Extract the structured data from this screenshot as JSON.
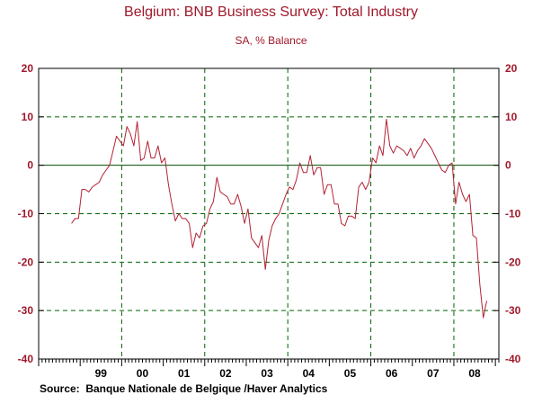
{
  "title": "Belgium: BNB Business Survey: Total Industry",
  "subtitle": "SA, % Balance",
  "source": "Source:  Banque Nationale de Belgique /Haver Analytics",
  "colors": {
    "title": "#a0182a",
    "line": "#b22234",
    "ytick": "#a0182a",
    "grid": "#006400"
  },
  "chart_data": {
    "type": "line",
    "title": "Belgium: BNB Business Survey: Total Industry",
    "subtitle": "SA, % Balance",
    "xlabel": "",
    "ylabel": "",
    "ylim": [
      -40,
      20
    ],
    "yticks": [
      20,
      10,
      0,
      -10,
      -20,
      -30,
      -40
    ],
    "ytick_labels": [
      "20",
      "10",
      "0",
      "-10",
      "-20",
      "-30",
      "-40"
    ],
    "x_start": "1998-10",
    "year_labels": [
      "99",
      "00",
      "01",
      "02",
      "03",
      "04",
      "05",
      "06",
      "07",
      "08"
    ],
    "grid": {
      "horizontal": true,
      "vertical": "every 2 years",
      "style": "dashed"
    },
    "zero_line": true,
    "series": [
      {
        "values": [
          -12,
          -11,
          -11,
          -5,
          -5,
          -5.5,
          -4.5,
          -4,
          -3.5,
          -2,
          -1,
          0,
          3,
          6,
          5,
          4,
          8,
          6.5,
          4,
          9,
          1,
          1.5,
          5,
          1.5,
          1.5,
          4,
          0.5,
          1.5,
          -4,
          -8,
          -11.5,
          -10,
          -11,
          -11,
          -12,
          -17,
          -14,
          -15,
          -12.5,
          -12,
          -9,
          -7.5,
          -2.5,
          -5.5,
          -6,
          -6.5,
          -8,
          -8,
          -6,
          -8.5,
          -12,
          -9,
          -15,
          -16,
          -17,
          -14.5,
          -21.5,
          -15.5,
          -12.5,
          -11,
          -10,
          -8,
          -6,
          -4.5,
          -5,
          -3,
          0.5,
          -1.5,
          -1.5,
          2,
          -2,
          -0.5,
          -0.5,
          -6,
          -4,
          -4,
          -8,
          -8,
          -12,
          -12.5,
          -10.5,
          -10.5,
          -11,
          -4.5,
          -3.5,
          -5,
          -3.5,
          1.5,
          0.5,
          4,
          2,
          9.5,
          4,
          2.5,
          4,
          3.5,
          3,
          2,
          3.5,
          1.5,
          3,
          4,
          5.5,
          4.5,
          3.5,
          2,
          0.5,
          -1,
          -1.5,
          0,
          0.5,
          -8,
          -3.5,
          -6,
          -7.5,
          -6,
          -14.5,
          -15,
          -24.5,
          -31.5,
          -28
        ]
      }
    ]
  }
}
